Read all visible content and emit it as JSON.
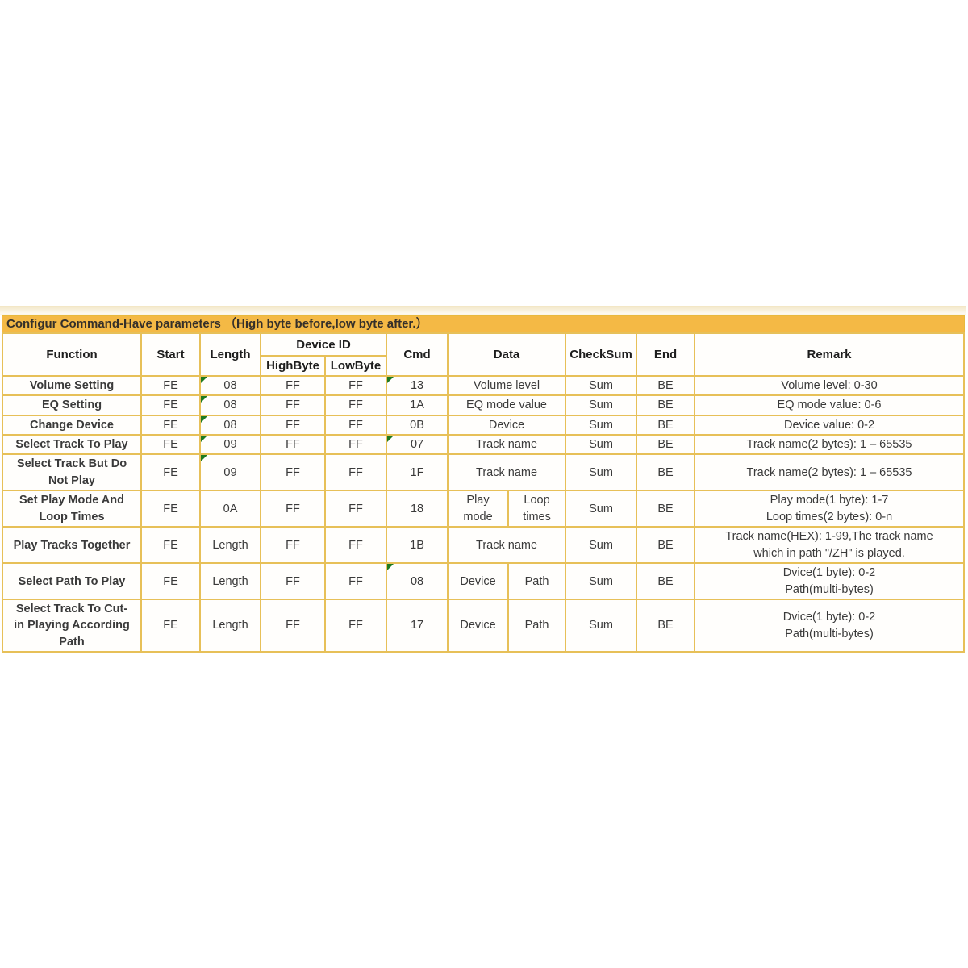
{
  "colors": {
    "title_bar_bg": "#F4B945",
    "cell_border": "#E7C058",
    "error_triangle": "#1E7A22",
    "page_bg": "#FFFFFF"
  },
  "table": {
    "title": "Configur Command-Have parameters （High byte before,low byte after.）",
    "headers": {
      "function": "Function",
      "start": "Start",
      "length": "Length",
      "device_id": "Device ID",
      "high_byte": "HighByte",
      "low_byte": "LowByte",
      "cmd": "Cmd",
      "data": "Data",
      "checksum": "CheckSum",
      "end": "End",
      "remark": "Remark"
    },
    "rows": [
      {
        "function": "Volume Setting",
        "start": "FE",
        "length": "08",
        "high_byte": "FF",
        "low_byte": "FF",
        "cmd": "13",
        "data": "Volume level",
        "checksum": "Sum",
        "end": "BE",
        "remark": "Volume level: 0-30"
      },
      {
        "function": "EQ Setting",
        "start": "FE",
        "length": "08",
        "high_byte": "FF",
        "low_byte": "FF",
        "cmd": "1A",
        "data": "EQ mode value",
        "checksum": "Sum",
        "end": "BE",
        "remark": "EQ mode value: 0-6"
      },
      {
        "function": "Change Device",
        "start": "FE",
        "length": "08",
        "high_byte": "FF",
        "low_byte": "FF",
        "cmd": "0B",
        "data": "Device",
        "checksum": "Sum",
        "end": "BE",
        "remark": "Device value: 0-2"
      },
      {
        "function": "Select Track To Play",
        "start": "FE",
        "length": "09",
        "high_byte": "FF",
        "low_byte": "FF",
        "cmd": "07",
        "data": "Track name",
        "checksum": "Sum",
        "end": "BE",
        "remark": "Track name(2 bytes): 1 – 65535"
      },
      {
        "function": "Select Track But Do\nNot Play",
        "start": "FE",
        "length": "09",
        "high_byte": "FF",
        "low_byte": "FF",
        "cmd": "1F",
        "data": "Track name",
        "checksum": "Sum",
        "end": "BE",
        "remark": "Track name(2 bytes): 1 – 65535"
      },
      {
        "function": "Set Play Mode And\nLoop Times",
        "start": "FE",
        "length": "0A",
        "high_byte": "FF",
        "low_byte": "FF",
        "cmd": "18",
        "data": "Play\nmode",
        "data2": "Loop\ntimes",
        "checksum": "Sum",
        "end": "BE",
        "remark": "Play mode(1 byte): 1-7\nLoop times(2 bytes): 0-n"
      },
      {
        "function": "Play Tracks Together",
        "start": "FE",
        "length": "Length",
        "high_byte": "FF",
        "low_byte": "FF",
        "cmd": "1B",
        "data": "Track name",
        "checksum": "Sum",
        "end": "BE",
        "remark": "Track name(HEX): 1-99,The track name\nwhich  in path \"/ZH\" is played."
      },
      {
        "function": "Select Path To Play",
        "start": "FE",
        "length": "Length",
        "high_byte": "FF",
        "low_byte": "FF",
        "cmd": "08",
        "data": "Device",
        "data2": "Path",
        "checksum": "Sum",
        "end": "BE",
        "remark": "Dvice(1 byte): 0-2\nPath(multi-bytes)"
      },
      {
        "function": "Select Track To Cut-\nin Playing According\nPath",
        "start": "FE",
        "length": "Length",
        "high_byte": "FF",
        "low_byte": "FF",
        "cmd": "17",
        "data": "Device",
        "data2": "Path",
        "checksum": "Sum",
        "end": "BE",
        "remark": "Dvice(1 byte): 0-2\nPath(multi-bytes)"
      }
    ]
  }
}
